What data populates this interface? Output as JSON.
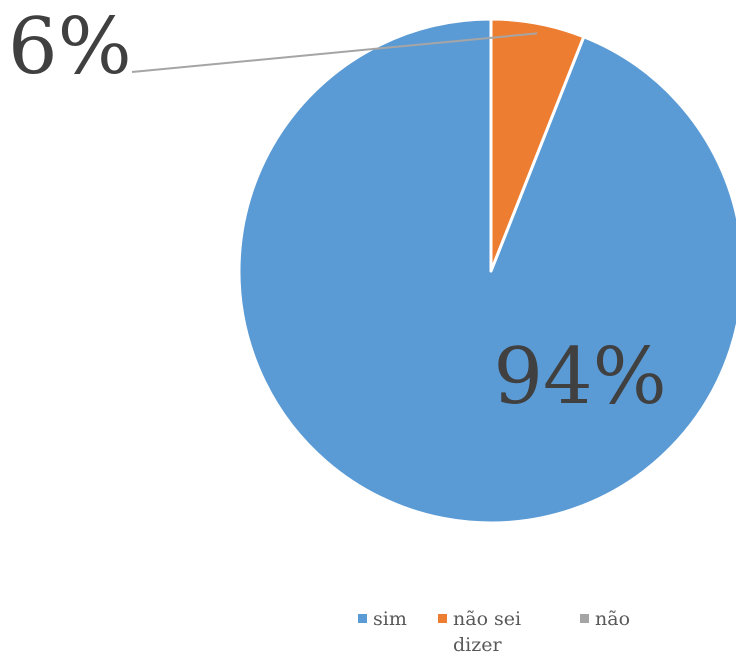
{
  "chart_data": {
    "type": "pie",
    "categories": [
      "sim",
      "não sei dizer",
      "não"
    ],
    "values": [
      94,
      6,
      0
    ],
    "value_format": "percent",
    "data_labels": [
      "94%",
      "6%",
      ""
    ],
    "colors": [
      "#5B9BD5",
      "#ED7D31",
      "#A5A5A5"
    ],
    "legend_position": "bottom",
    "start_angle": "12 o'clock",
    "direction": "counterclockwise",
    "legend": {
      "items": [
        {
          "label_line1": "sim",
          "label_line2": ""
        },
        {
          "label_line1": "não sei",
          "label_line2": "dizer"
        },
        {
          "label_line1": "não",
          "label_line2": ""
        }
      ]
    }
  }
}
